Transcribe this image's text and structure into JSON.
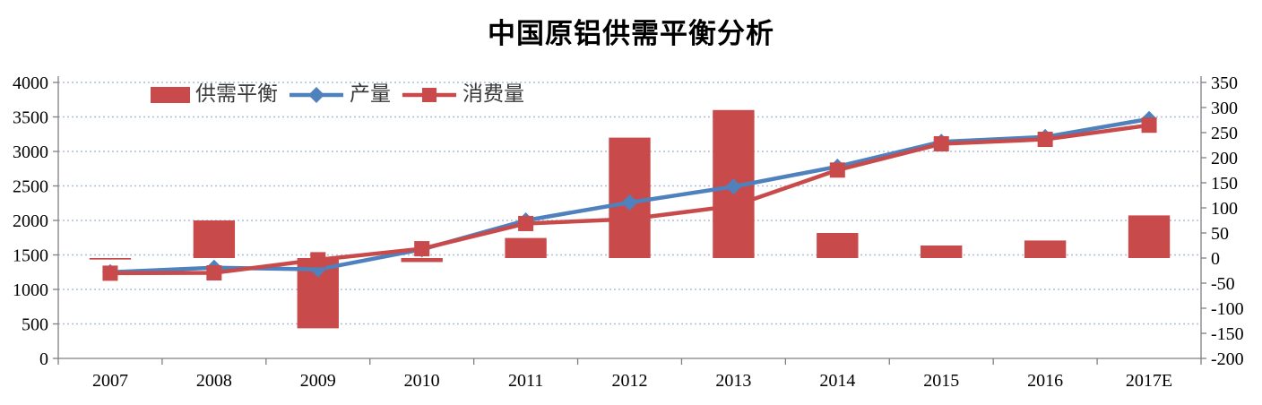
{
  "title": "中国原铝供需平衡分析",
  "legend": {
    "items": [
      {
        "label": "供需平衡",
        "marker": "bar"
      },
      {
        "label": "产量",
        "marker": "line-diamond"
      },
      {
        "label": "消费量",
        "marker": "line-square"
      }
    ]
  },
  "colors": {
    "bar": "#C94A4A",
    "production_line": "#4F81BD",
    "consumption_line": "#C94A4A",
    "gridline": "#AEBFD9",
    "axis": "#808080",
    "tick_text": "#000000"
  },
  "chart_data": {
    "type": "bar",
    "subtype": "combo-bar-and-lines",
    "title": "中国原铝供需平衡分析",
    "categories": [
      "2007",
      "2008",
      "2009",
      "2010",
      "2011",
      "2012",
      "2013",
      "2014",
      "2015",
      "2016",
      "2017E"
    ],
    "series": [
      {
        "name": "供需平衡",
        "type": "bar",
        "axis": "right",
        "color": "#C94A4A",
        "values": [
          -3,
          75,
          -140,
          -8,
          40,
          240,
          295,
          50,
          25,
          35,
          85
        ]
      },
      {
        "name": "产量",
        "type": "line",
        "axis": "left",
        "marker": "diamond",
        "color": "#4F81BD",
        "values": [
          1250,
          1315,
          1290,
          1580,
          2000,
          2260,
          2490,
          2780,
          3140,
          3210,
          3470
        ]
      },
      {
        "name": "消费量",
        "type": "line",
        "axis": "left",
        "marker": "square",
        "color": "#C94A4A",
        "values": [
          1235,
          1240,
          1430,
          1590,
          1955,
          2020,
          2210,
          2730,
          3110,
          3175,
          3380
        ]
      }
    ],
    "xlabel": "",
    "ylabel_left": "",
    "ylabel_right": "",
    "left_axis": {
      "min": 0,
      "max": 4000,
      "step": 500,
      "tick_labels": [
        "0",
        "500",
        "1000",
        "1500",
        "2000",
        "2500",
        "3000",
        "3500",
        "4000"
      ]
    },
    "right_axis": {
      "min": -200,
      "max": 350,
      "step": 50,
      "tick_labels": [
        "-200",
        "-150",
        "-100",
        "-50",
        "0",
        "50",
        "100",
        "150",
        "200",
        "250",
        "300",
        "350"
      ]
    },
    "grid": "horizontal-dotted",
    "legend_position": "inside-top-left"
  }
}
